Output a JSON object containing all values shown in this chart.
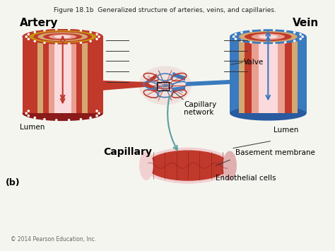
{
  "title": "Figure 18.1b  Generalized structure of arteries, veins, and capillaries.",
  "title_fontsize": 6.5,
  "title_color": "#222222",
  "bg_color": "#f5f5f0",
  "labels": {
    "artery": "Artery",
    "vein": "Vein",
    "capillary": "Capillary",
    "capillary_network": "Capillary\nnetwork",
    "lumen_left": "Lumen",
    "lumen_right": "Lumen",
    "basement_membrane": "Basement membrane",
    "endothelial_cells": "Endothelial cells",
    "valve": "Valve",
    "b_label": "(b)",
    "copyright": "© 2014 Pearson Education, Inc."
  },
  "colors": {
    "artery_outer": "#c0392b",
    "artery_mid": "#e8a87c",
    "artery_inner_ring": "#f5c6a0",
    "artery_lumen": "#f9d5d3",
    "artery_yellow_ring": "#d4a017",
    "artery_white_dots": "#ffffff",
    "vein_outer": "#3a7abf",
    "vein_mid": "#e8a87c",
    "vein_inner": "#f5c6a0",
    "vein_lumen": "#f9d5d3",
    "capillary_vessel": "#c0392b",
    "capillary_vessel_vein": "#3a7abf",
    "capillary_tube_outer": "#d4a0a0",
    "capillary_tube_inner": "#c0392b",
    "line_color": "#333333",
    "arrow_red": "#c0392b",
    "arrow_blue": "#3a7abf",
    "arrow_teal": "#5ba0a0"
  }
}
